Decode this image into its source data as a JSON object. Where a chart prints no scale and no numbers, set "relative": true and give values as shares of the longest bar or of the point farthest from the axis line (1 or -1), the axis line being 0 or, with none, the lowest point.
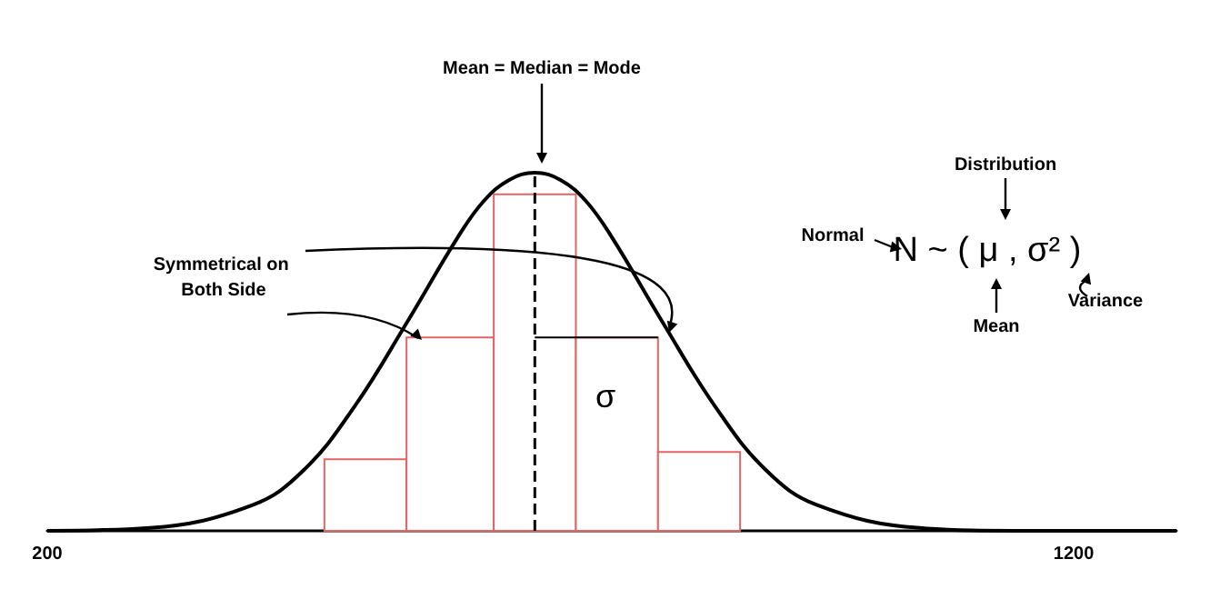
{
  "chart_data": {
    "type": "histogram",
    "relative": true,
    "bins": [
      470,
      550,
      635,
      715,
      795,
      875
    ],
    "values": [
      0.2,
      0.54,
      0.94,
      0.54,
      0.22
    ],
    "color": "#e06666",
    "series": [
      {
        "type": "line",
        "color": "#000000",
        "x": [
          200,
          300,
          400,
          450,
          500,
          550,
          600,
          625,
          650,
          675,
          700,
          725,
          750,
          800,
          850,
          900,
          950,
          1050,
          1150,
          1250,
          1300
        ],
        "values": [
          0,
          0.008,
          0.072,
          0.17,
          0.35,
          0.58,
          0.82,
          0.92,
          0.98,
          1,
          0.98,
          0.92,
          0.82,
          0.58,
          0.35,
          0.17,
          0.072,
          0.008,
          0,
          0,
          0
        ]
      },
      {
        "type": "line",
        "color": "#000000",
        "x": [
          675,
          795
        ],
        "values": [
          0.54,
          0.54
        ]
      }
    ],
    "xlim": [
      200,
      1300
    ],
    "xticks": [
      200,
      1200
    ],
    "tick_labels": "x",
    "grid": false,
    "ref_lines": [
      {
        "axis": "x",
        "value": 675,
        "color": "#000000",
        "line_style": "dashed"
      }
    ],
    "annotations": [
      "Mean = Median = Mode",
      "Symmetrical on Both Side",
      "Normal",
      "N ~ ( μ , σ² )",
      "Distribution",
      "Mean",
      "Variance",
      "σ"
    ]
  }
}
